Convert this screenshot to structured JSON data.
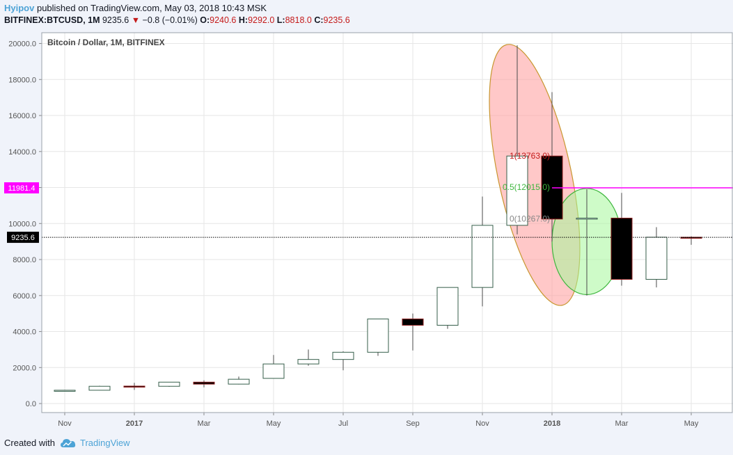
{
  "header": {
    "publisher": "Hyipov",
    "published_text": "published on TradingView.com, May 03, 2018 10:43 MSK",
    "symbol": "BITFINEX:BTCUSD, 1M",
    "last": "9235.6",
    "change_arrow": "▼",
    "change": "−0.8 (−0.01%)",
    "o_label": "O:",
    "o_value": "9240.6",
    "h_label": "H:",
    "h_value": "9292.0",
    "l_label": "L:",
    "l_value": "8818.0",
    "c_label": "C:",
    "c_value": "9235.6"
  },
  "footer": {
    "created_with": "Created with",
    "brand": "TradingView",
    "logo_icon": "tradingview-cloud-icon"
  },
  "colors": {
    "up_border": "#355e4a",
    "down_fill": "#000000",
    "magenta": "#ff00ff",
    "red_ellipse": "#ff9a9a",
    "green_ellipse": "#a6f79a",
    "accent": "#4da3d6"
  },
  "chart_data": {
    "type": "candlestick",
    "title": "Bitcoin / Dollar, 1M, BITFINEX",
    "ylim": [
      -500,
      20600
    ],
    "yticks": [
      "0.0",
      "2000.0",
      "4000.0",
      "6000.0",
      "8000.0",
      "10000.0",
      "12000.0",
      "14000.0",
      "16000.0",
      "18000.0",
      "20000.0"
    ],
    "xticks": [
      {
        "label": "Nov",
        "index": 0,
        "bold": false
      },
      {
        "label": "2017",
        "index": 2,
        "bold": true
      },
      {
        "label": "Mar",
        "index": 4,
        "bold": false
      },
      {
        "label": "May",
        "index": 6,
        "bold": false
      },
      {
        "label": "Jul",
        "index": 8,
        "bold": false
      },
      {
        "label": "Sep",
        "index": 10,
        "bold": false
      },
      {
        "label": "Nov",
        "index": 12,
        "bold": false
      },
      {
        "label": "2018",
        "index": 14,
        "bold": true
      },
      {
        "label": "Mar",
        "index": 16,
        "bold": false
      },
      {
        "label": "May",
        "index": 18,
        "bold": false
      }
    ],
    "candles": [
      {
        "o": 700,
        "h": 760,
        "l": 680,
        "c": 740
      },
      {
        "o": 740,
        "h": 990,
        "l": 730,
        "c": 960
      },
      {
        "o": 970,
        "h": 1150,
        "l": 760,
        "c": 960
      },
      {
        "o": 960,
        "h": 1200,
        "l": 930,
        "c": 1190
      },
      {
        "o": 1190,
        "h": 1290,
        "l": 900,
        "c": 1080
      },
      {
        "o": 1080,
        "h": 1500,
        "l": 1060,
        "c": 1350
      },
      {
        "o": 1400,
        "h": 2700,
        "l": 1390,
        "c": 2200
      },
      {
        "o": 2200,
        "h": 3000,
        "l": 2100,
        "c": 2450
      },
      {
        "o": 2450,
        "h": 2900,
        "l": 1850,
        "c": 2850
      },
      {
        "o": 2850,
        "h": 4700,
        "l": 2650,
        "c": 4700
      },
      {
        "o": 4700,
        "h": 5000,
        "l": 2950,
        "c": 4350
      },
      {
        "o": 4350,
        "h": 6450,
        "l": 4150,
        "c": 6450
      },
      {
        "o": 6450,
        "h": 11500,
        "l": 5400,
        "c": 9900
      },
      {
        "o": 9900,
        "h": 19900,
        "l": 9400,
        "c": 13750
      },
      {
        "o": 13750,
        "h": 17300,
        "l": 9000,
        "c": 10250
      },
      {
        "o": 10300,
        "h": 11900,
        "l": 6000,
        "c": 10300
      },
      {
        "o": 10300,
        "h": 11700,
        "l": 6550,
        "c": 6900
      },
      {
        "o": 6900,
        "h": 9800,
        "l": 6450,
        "c": 9240
      },
      {
        "o": 9240,
        "h": 9292,
        "l": 8818,
        "c": 9235.6
      }
    ],
    "fib_levels": [
      {
        "label": "1(13763.0)",
        "value": 13763.0,
        "color": "#c41a1a"
      },
      {
        "label": "0.5(12015.0)",
        "value": 12015.0,
        "color": "#3db53d"
      },
      {
        "label": "0(10267.0)",
        "value": 10267.0,
        "color": "#888888"
      }
    ],
    "hline": {
      "value": 11981.4,
      "label": "11981.4",
      "color": "#ff00ff",
      "from_index": 14
    },
    "last_price": {
      "value": 9235.6,
      "label": "9235.6"
    },
    "ellipses": [
      {
        "name": "red-ellipse",
        "cx_index": 13.5,
        "cy": 12700,
        "rx_index": 1.05,
        "ry": 7400,
        "rotate": -12,
        "fill": "#ff9a9a",
        "stroke": "#c8962e"
      },
      {
        "name": "green-ellipse",
        "cx_index": 15,
        "cy": 9000,
        "rx_index": 1.0,
        "ry": 2950,
        "rotate": 0,
        "fill": "#a6f79a",
        "stroke": "#3db53d"
      }
    ]
  }
}
